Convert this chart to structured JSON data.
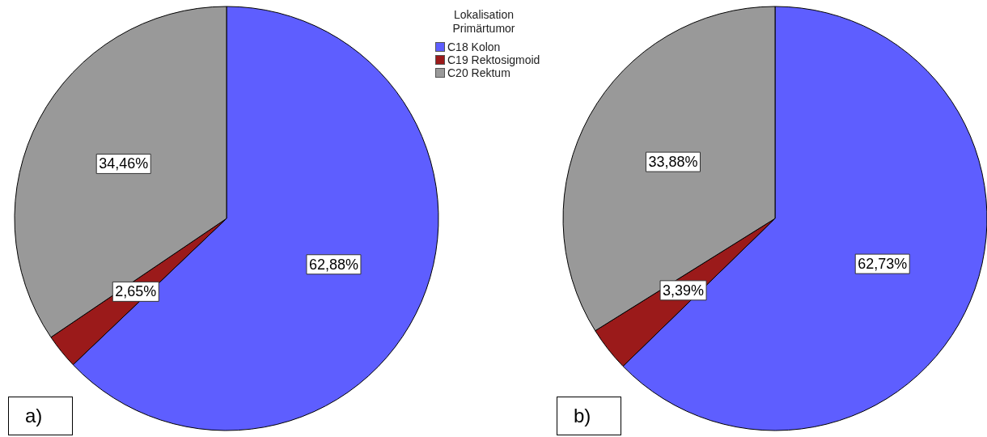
{
  "chart_data": [
    {
      "type": "pie",
      "categories": [
        "C18 Kolon",
        "C19 Rektosigmoid",
        "C20 Rektum"
      ],
      "values": [
        62.88,
        2.65,
        34.46
      ],
      "colors": [
        "#5e5eff",
        "#9b1a1a",
        "#999999"
      ],
      "value_labels": [
        "62,88%",
        "2,65%",
        "34,46%"
      ],
      "legend": "right",
      "legend_title": "Lokalisation Primärtumor",
      "annotations": [
        "a)"
      ]
    },
    {
      "type": "pie",
      "categories": [
        null,
        null,
        null
      ],
      "values": [
        62.73,
        3.39,
        33.88
      ],
      "colors": [
        "#5e5eff",
        "#9b1a1a",
        "#999999"
      ],
      "value_labels": [
        "62,73%",
        "3,39%",
        "33,88%"
      ],
      "annotations": [
        "b)"
      ]
    }
  ]
}
